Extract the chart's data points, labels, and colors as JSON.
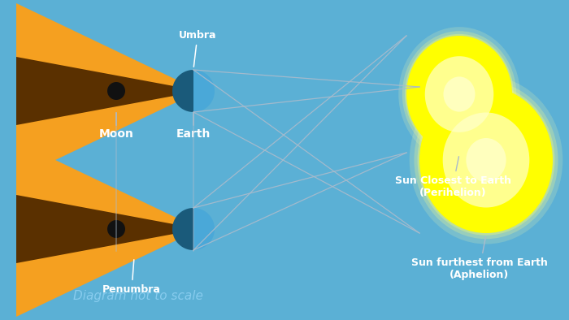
{
  "bg_color": "#5bb0d5",
  "orange_color": "#f5a020",
  "shadow_color": "#5a3000",
  "moon_dark_color": "#1a5a7a",
  "moon_light_color": "#4aa8d8",
  "line_color": "#aabbcc",
  "white": "#ffffff",
  "label_scale_color": "#88ccee",
  "label_moon": "Moon",
  "label_earth": "Earth",
  "label_umbra": "Umbra",
  "label_penumbra": "Penumbra",
  "label_aphelion": "Sun furthest from Earth\n(Aphelion)",
  "label_perihelion": "Sun Closest to Earth\n(Perihelion)",
  "label_scale": "Diagram not to scale",
  "fig_w": 7.0,
  "fig_h": 3.94,
  "dpi": 100
}
